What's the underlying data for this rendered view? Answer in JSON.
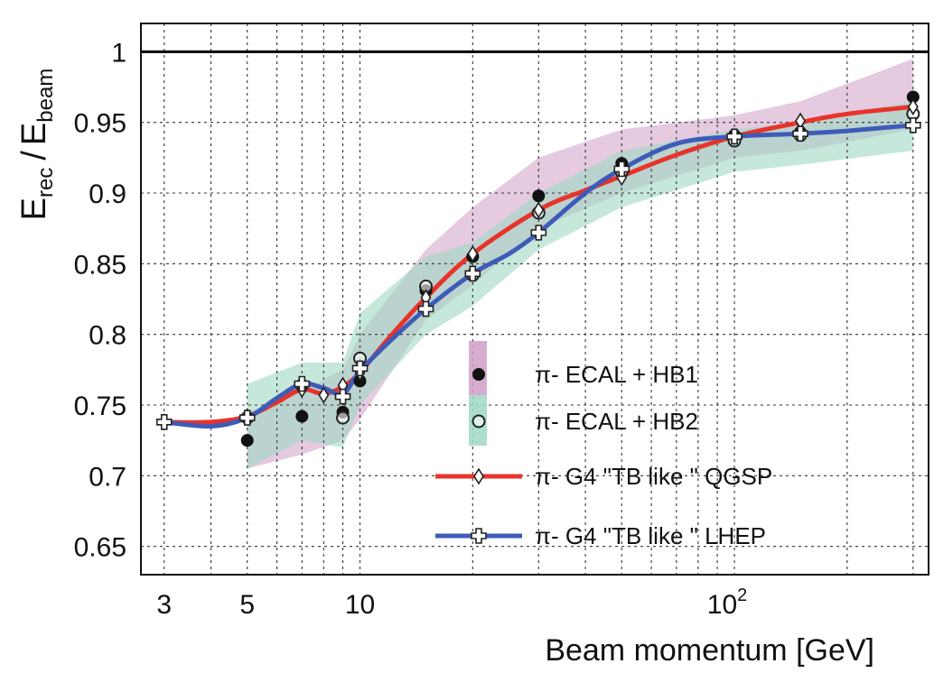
{
  "chart_data": {
    "type": "scatter",
    "xscale": "log",
    "xlabel": "Beam momentum [GeV]",
    "ylabel_main": "E",
    "ylabel_num_sub": "rec",
    "ylabel_sep": "/",
    "ylabel_den_sub": "beam",
    "xlim": [
      2.6,
      330
    ],
    "ylim": [
      0.63,
      1.02
    ],
    "x_ticks": [
      {
        "value": 3,
        "label": "3"
      },
      {
        "value": 5,
        "label": "5"
      },
      {
        "value": 10,
        "label": "10"
      }
    ],
    "x_tick_power": {
      "value": 100,
      "base": "10",
      "exp": "2"
    },
    "y_ticks": [
      {
        "value": 0.65,
        "label": "0.65"
      },
      {
        "value": 0.7,
        "label": "0.7"
      },
      {
        "value": 0.75,
        "label": "0.75"
      },
      {
        "value": 0.8,
        "label": "0.8"
      },
      {
        "value": 0.85,
        "label": "0.85"
      },
      {
        "value": 0.9,
        "label": "0.9"
      },
      {
        "value": 0.95,
        "label": "0.95"
      },
      {
        "value": 1,
        "label": "1"
      }
    ],
    "grid": true,
    "reference_line": 1.0,
    "legend_position": "center-right",
    "series": [
      {
        "name": "π- ECAL + HB1",
        "marker": "filled-circle",
        "band_color": "#cf9fc6",
        "x": [
          5,
          7,
          9,
          10,
          15,
          20,
          30,
          50,
          100,
          150,
          300
        ],
        "y": [
          0.725,
          0.742,
          0.745,
          0.767,
          0.831,
          0.855,
          0.898,
          0.921,
          0.941,
          0.943,
          0.968
        ],
        "band_lower": [
          0.705,
          0.715,
          0.725,
          0.74,
          0.81,
          0.835,
          0.875,
          0.9,
          0.925,
          0.93,
          0.945
        ],
        "band_upper": [
          0.745,
          0.76,
          0.775,
          0.8,
          0.86,
          0.89,
          0.925,
          0.945,
          0.955,
          0.965,
          0.995
        ]
      },
      {
        "name": "π- ECAL + HB2",
        "marker": "open-circle",
        "band_color": "#9fd8c3",
        "x": [
          5,
          7,
          9,
          10,
          15,
          20,
          30,
          50,
          100,
          150,
          300
        ],
        "y": [
          0.741,
          0.764,
          0.741,
          0.783,
          0.834,
          0.842,
          0.886,
          0.915,
          0.937,
          0.941,
          0.956
        ],
        "band_lower": [
          0.705,
          0.725,
          0.72,
          0.75,
          0.8,
          0.82,
          0.86,
          0.89,
          0.915,
          0.92,
          0.93
        ],
        "band_upper": [
          0.765,
          0.78,
          0.78,
          0.815,
          0.855,
          0.865,
          0.9,
          0.93,
          0.945,
          0.95,
          0.965
        ]
      },
      {
        "name": "π- G4 \"TB like \" QGSP",
        "marker": "open-diamond",
        "line_color": "#e8332b",
        "x": [
          3,
          5,
          7,
          8,
          9,
          10,
          15,
          20,
          30,
          50,
          100,
          150,
          300
        ],
        "y": [
          0.738,
          0.742,
          0.761,
          0.757,
          0.764,
          0.773,
          0.826,
          0.857,
          0.888,
          0.911,
          0.94,
          0.951,
          0.961
        ]
      },
      {
        "name": "π- G4 \"TB like \" LHEP",
        "marker": "open-cross",
        "line_color": "#3f5bb8",
        "x": [
          3,
          5,
          7,
          9,
          10,
          15,
          20,
          30,
          50,
          100,
          150,
          300
        ],
        "y": [
          0.738,
          0.741,
          0.765,
          0.756,
          0.776,
          0.818,
          0.843,
          0.872,
          0.917,
          0.94,
          0.942,
          0.948
        ]
      }
    ],
    "line_curves": [
      {
        "series": 2,
        "x": [
          3,
          4,
          5,
          6,
          7,
          8,
          9,
          10,
          12,
          15,
          20,
          30,
          40,
          50,
          70,
          100,
          150,
          200,
          300
        ],
        "y": [
          0.738,
          0.738,
          0.742,
          0.752,
          0.761,
          0.758,
          0.763,
          0.773,
          0.798,
          0.826,
          0.857,
          0.888,
          0.902,
          0.912,
          0.927,
          0.94,
          0.95,
          0.956,
          0.961
        ]
      },
      {
        "series": 3,
        "x": [
          3,
          4,
          5,
          6,
          7,
          8,
          9,
          10,
          12,
          15,
          20,
          25,
          30,
          40,
          50,
          70,
          100,
          150,
          200,
          300
        ],
        "y": [
          0.738,
          0.735,
          0.741,
          0.755,
          0.765,
          0.762,
          0.758,
          0.774,
          0.795,
          0.818,
          0.843,
          0.857,
          0.872,
          0.9,
          0.917,
          0.935,
          0.94,
          0.942,
          0.944,
          0.948
        ]
      }
    ]
  }
}
